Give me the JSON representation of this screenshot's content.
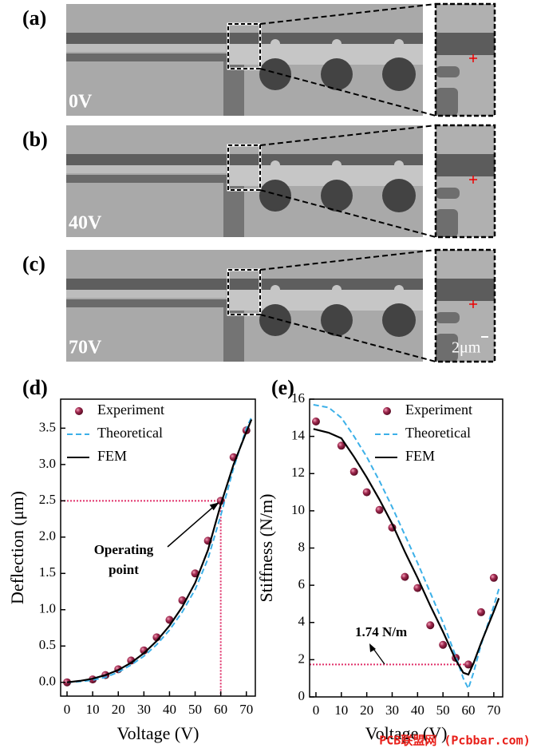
{
  "panels": [
    {
      "label": "(a)",
      "voltage": "0V"
    },
    {
      "label": "(b)",
      "voltage": "40V"
    },
    {
      "label": "(c)",
      "voltage": "70V"
    }
  ],
  "scale_bar": "2μm",
  "chart_data": [
    {
      "type": "scatter-line",
      "label": "(d)",
      "xlabel": "Voltage (V)",
      "ylabel": "Deflection (μm)",
      "xlim": [
        -2.5,
        73.5
      ],
      "xticks": [
        0,
        10,
        20,
        30,
        40,
        50,
        60,
        70
      ],
      "ylim": [
        -0.19,
        3.9
      ],
      "yticks": [
        {
          "value": 0,
          "label": "0.0"
        },
        0.5,
        {
          "value": 1,
          "label": "1.0"
        },
        1.5,
        {
          "value": 2,
          "label": "2.0"
        },
        2.5,
        {
          "value": 3,
          "label": "3.0"
        },
        3.5
      ],
      "legend": "upper left",
      "annotation": [
        "Operating",
        "point"
      ],
      "guide": {
        "x": 60,
        "y": 2.5
      },
      "series": [
        {
          "name": "Experiment",
          "kind": "scatter",
          "color": "#8b1a3a",
          "x": [
            0,
            10,
            15,
            20,
            25,
            30,
            35,
            40,
            45,
            50,
            55,
            60,
            65,
            70
          ],
          "values": [
            0,
            0.04,
            0.1,
            0.18,
            0.3,
            0.44,
            0.62,
            0.86,
            1.13,
            1.5,
            1.95,
            2.5,
            3.1,
            3.47
          ]
        },
        {
          "name": "Theoretical",
          "kind": "dashed",
          "color": "#3cb0e8",
          "x": [
            0,
            5,
            10,
            15,
            20,
            25,
            30,
            35,
            40,
            45,
            50,
            55,
            60,
            65,
            70,
            72
          ],
          "values": [
            0,
            0.01,
            0.03,
            0.07,
            0.14,
            0.24,
            0.36,
            0.52,
            0.72,
            0.97,
            1.28,
            1.7,
            2.3,
            2.95,
            3.5,
            3.65
          ]
        },
        {
          "name": "FEM",
          "kind": "line",
          "color": "#000000",
          "x": [
            0,
            5,
            10,
            15,
            20,
            25,
            30,
            35,
            40,
            45,
            50,
            55,
            60,
            65,
            70,
            72
          ],
          "values": [
            0,
            0.02,
            0.05,
            0.1,
            0.17,
            0.27,
            0.4,
            0.57,
            0.78,
            1.04,
            1.37,
            1.82,
            2.45,
            3.0,
            3.45,
            3.62
          ]
        }
      ]
    },
    {
      "type": "scatter-line",
      "label": "(e)",
      "xlabel": "Voltage (V)",
      "ylabel": "Stiffness (N/m)",
      "xlim": [
        -2.5,
        73.5
      ],
      "xticks": [
        0,
        10,
        20,
        30,
        40,
        50,
        60,
        70
      ],
      "ylim": [
        0,
        16
      ],
      "yticks": [
        0,
        2,
        4,
        6,
        8,
        10,
        12,
        14,
        16
      ],
      "legend": "upper right",
      "annotation": [
        "1.74 N/m"
      ],
      "guide": {
        "x": 60,
        "y": 1.74
      },
      "series": [
        {
          "name": "Experiment",
          "kind": "scatter",
          "color": "#8b1a3a",
          "x": [
            0,
            10,
            15,
            20,
            25,
            30,
            35,
            40,
            45,
            50,
            55,
            60,
            65,
            70
          ],
          "values": [
            14.8,
            13.5,
            12.1,
            11.0,
            10.05,
            9.1,
            6.45,
            5.85,
            3.85,
            2.8,
            2.1,
            1.74,
            4.55,
            6.4
          ]
        },
        {
          "name": "Theoretical",
          "kind": "dashed",
          "color": "#3cb0e8",
          "x": [
            -1,
            5,
            10,
            15,
            20,
            25,
            30,
            35,
            40,
            45,
            50,
            55,
            58,
            60,
            62,
            65,
            70,
            72
          ],
          "values": [
            15.7,
            15.55,
            15.0,
            14.0,
            12.9,
            11.6,
            10.2,
            8.7,
            7.2,
            5.6,
            4.0,
            2.2,
            1.0,
            0.45,
            1.3,
            2.8,
            4.9,
            5.8
          ]
        },
        {
          "name": "FEM",
          "kind": "line",
          "color": "#000000",
          "x": [
            -1,
            5,
            10,
            15,
            20,
            25,
            30,
            35,
            40,
            45,
            50,
            55,
            58,
            60,
            62,
            65,
            70,
            72
          ],
          "values": [
            14.4,
            14.2,
            13.9,
            12.9,
            11.8,
            10.6,
            9.3,
            7.8,
            6.4,
            4.9,
            3.5,
            2.0,
            1.3,
            1.2,
            1.8,
            2.9,
            4.6,
            5.3
          ]
        }
      ]
    }
  ],
  "watermark": "PCB联盟网 (Pcbbar.com)"
}
